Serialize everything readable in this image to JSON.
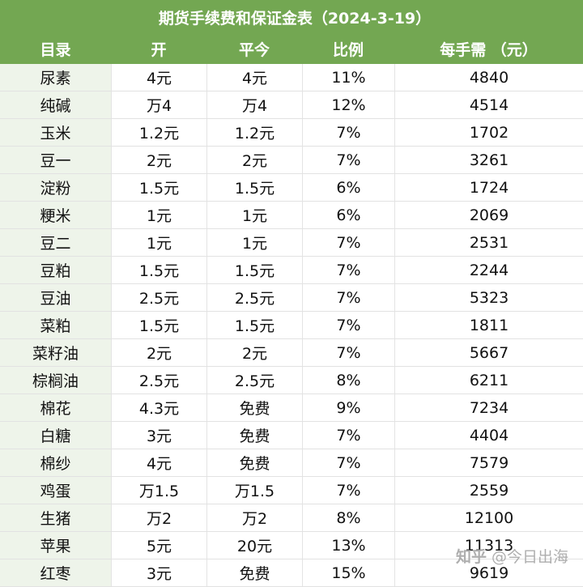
{
  "title": "期货手续费和保证金表（2024-3-19）",
  "columns": [
    "目录",
    "开",
    "平今",
    "比例",
    "每手需 （元）"
  ],
  "rows": [
    {
      "name": "尿素",
      "open": "4元",
      "close_today": "4元",
      "ratio": "11%",
      "margin": "4840"
    },
    {
      "name": "纯碱",
      "open": "万4",
      "close_today": "万4",
      "ratio": "12%",
      "margin": "4514"
    },
    {
      "name": "玉米",
      "open": "1.2元",
      "close_today": "1.2元",
      "ratio": "7%",
      "margin": "1702"
    },
    {
      "name": "豆一",
      "open": "2元",
      "close_today": "2元",
      "ratio": "7%",
      "margin": "3261"
    },
    {
      "name": "淀粉",
      "open": "1.5元",
      "close_today": "1.5元",
      "ratio": "6%",
      "margin": "1724"
    },
    {
      "name": "粳米",
      "open": "1元",
      "close_today": "1元",
      "ratio": "6%",
      "margin": "2069"
    },
    {
      "name": "豆二",
      "open": "1元",
      "close_today": "1元",
      "ratio": "7%",
      "margin": "2531"
    },
    {
      "name": "豆粕",
      "open": "1.5元",
      "close_today": "1.5元",
      "ratio": "7%",
      "margin": "2244"
    },
    {
      "name": "豆油",
      "open": "2.5元",
      "close_today": "2.5元",
      "ratio": "7%",
      "margin": "5323"
    },
    {
      "name": "菜粕",
      "open": "1.5元",
      "close_today": "1.5元",
      "ratio": "7%",
      "margin": "1811"
    },
    {
      "name": "菜籽油",
      "open": "2元",
      "close_today": "2元",
      "ratio": "7%",
      "margin": "5667"
    },
    {
      "name": "棕榈油",
      "open": "2.5元",
      "close_today": "2.5元",
      "ratio": "8%",
      "margin": "6211"
    },
    {
      "name": "棉花",
      "open": "4.3元",
      "close_today": "免费",
      "ratio": "9%",
      "margin": "7234"
    },
    {
      "name": "白糖",
      "open": "3元",
      "close_today": "免费",
      "ratio": "7%",
      "margin": "4404"
    },
    {
      "name": "棉纱",
      "open": "4元",
      "close_today": "免费",
      "ratio": "7%",
      "margin": "7579"
    },
    {
      "name": "鸡蛋",
      "open": "万1.5",
      "close_today": "万1.5",
      "ratio": "7%",
      "margin": "2559"
    },
    {
      "name": "生猪",
      "open": "万2",
      "close_today": "万2",
      "ratio": "8%",
      "margin": "12100"
    },
    {
      "name": "苹果",
      "open": "5元",
      "close_today": "20元",
      "ratio": "13%",
      "margin": "11313"
    },
    {
      "name": "红枣",
      "open": "3元",
      "close_today": "免费",
      "ratio": "15%",
      "margin": "9619"
    }
  ],
  "watermark": {
    "site": "知乎",
    "author": "@今日出海"
  },
  "colors": {
    "header_bg": "#73a752",
    "name_col_bg": "#eef4ea"
  }
}
